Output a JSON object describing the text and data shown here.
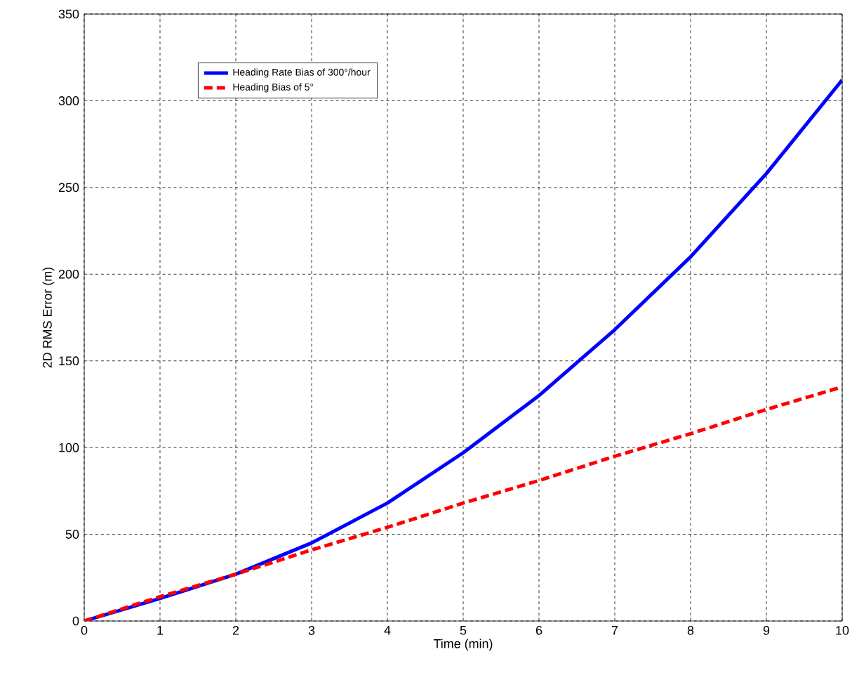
{
  "chart_data": {
    "type": "line",
    "xlabel": "Time (min)",
    "ylabel": "2D RMS Error (m)",
    "x": [
      0,
      1,
      2,
      3,
      4,
      5,
      6,
      7,
      8,
      9,
      10
    ],
    "series": [
      {
        "name": "Heading Rate Bias of 300°/hour",
        "color": "#0000ff",
        "line_style": "solid",
        "values": [
          0,
          13,
          27,
          45,
          68,
          97,
          130,
          168,
          210,
          258,
          312
        ]
      },
      {
        "name": "Heading Bias of 5°",
        "color": "#ff0000",
        "line_style": "dashed",
        "values": [
          0,
          14,
          27,
          41,
          54,
          68,
          81,
          95,
          108,
          122,
          135
        ]
      }
    ],
    "xlim": [
      0,
      10
    ],
    "ylim": [
      0,
      350
    ],
    "xticks": [
      0,
      1,
      2,
      3,
      4,
      5,
      6,
      7,
      8,
      9,
      10
    ],
    "yticks": [
      0,
      50,
      100,
      150,
      200,
      250,
      300,
      350
    ],
    "grid": true,
    "legend": "top left",
    "marker": "none"
  }
}
